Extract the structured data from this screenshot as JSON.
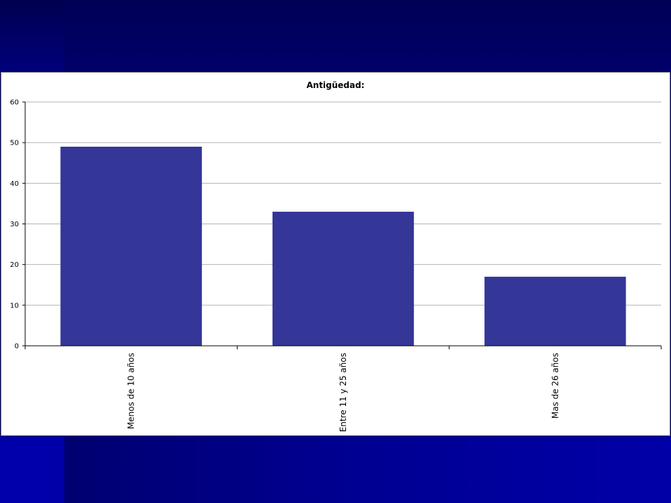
{
  "colors": {
    "bar": "#343698",
    "grid": "#b3b3b3",
    "axis": "#000000",
    "panel": "#ffffff"
  },
  "chart_data": {
    "type": "bar",
    "title": "Antigüedad:",
    "categories": [
      "Menos de 10 años",
      "Entre 11 y 25 años",
      "Mas de 26 años"
    ],
    "values": [
      49,
      33,
      17
    ],
    "ylim": [
      0,
      60
    ],
    "yticks": [
      0,
      10,
      20,
      30,
      40,
      50,
      60
    ],
    "xlabel": "",
    "ylabel": "",
    "grid": true,
    "legend": "none"
  }
}
